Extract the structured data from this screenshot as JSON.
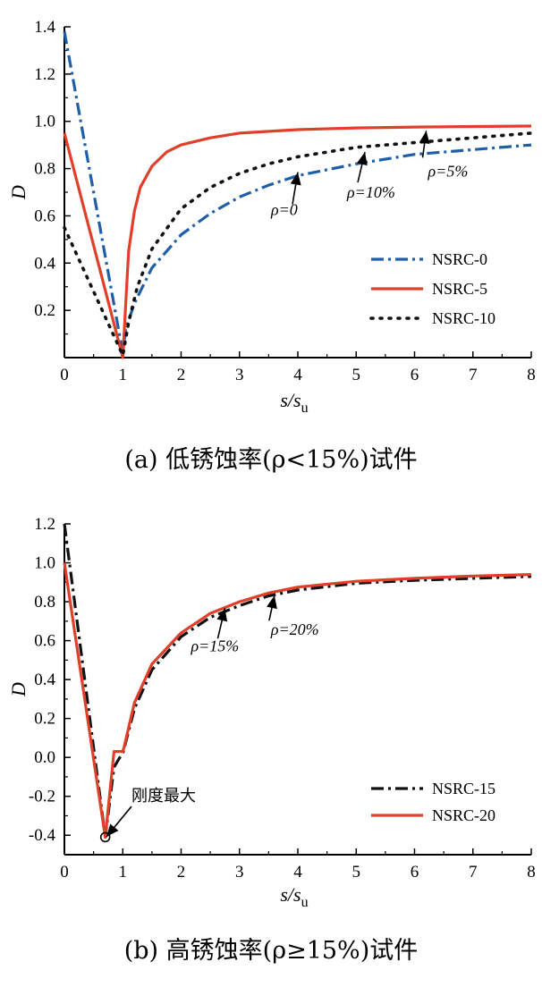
{
  "chart_data": [
    {
      "type": "line",
      "caption": "(a) 低锈蚀率(ρ<15%)试件",
      "xlabel_main": "s/s",
      "xlabel_sub": "u",
      "ylabel": "D",
      "xlim": [
        0,
        8
      ],
      "ylim": [
        0,
        1.4
      ],
      "xticks": [
        "0",
        "1",
        "2",
        "3",
        "4",
        "5",
        "6",
        "7",
        "8"
      ],
      "yticks": [
        "0.2",
        "0.4",
        "0.6",
        "0.8",
        "1.0",
        "1.2",
        "1.4"
      ],
      "legend_position": "lower-right",
      "grid": false,
      "series": [
        {
          "name": "NSRC-0",
          "color": "#1f5fa8",
          "dash": "dashdot",
          "points": [
            [
              0,
              1.38
            ],
            [
              1.0,
              0.02
            ],
            [
              1.05,
              0.12
            ],
            [
              1.2,
              0.23
            ],
            [
              1.5,
              0.38
            ],
            [
              2,
              0.52
            ],
            [
              2.5,
              0.61
            ],
            [
              3,
              0.68
            ],
            [
              3.5,
              0.73
            ],
            [
              4,
              0.77
            ],
            [
              5,
              0.82
            ],
            [
              6,
              0.86
            ],
            [
              7,
              0.88
            ],
            [
              8,
              0.9
            ]
          ]
        },
        {
          "name": "NSRC-5",
          "color": "#e0402a",
          "dash": "solid",
          "points": [
            [
              0,
              0.95
            ],
            [
              1.0,
              0.0
            ],
            [
              1.1,
              0.45
            ],
            [
              1.2,
              0.62
            ],
            [
              1.3,
              0.72
            ],
            [
              1.5,
              0.81
            ],
            [
              1.75,
              0.87
            ],
            [
              2,
              0.9
            ],
            [
              2.5,
              0.93
            ],
            [
              3,
              0.95
            ],
            [
              4,
              0.965
            ],
            [
              5,
              0.972
            ],
            [
              6,
              0.976
            ],
            [
              7,
              0.978
            ],
            [
              8,
              0.98
            ]
          ]
        },
        {
          "name": "NSRC-10",
          "color": "#111111",
          "dash": "dot",
          "points": [
            [
              0,
              0.55
            ],
            [
              1.0,
              0.01
            ],
            [
              1.1,
              0.15
            ],
            [
              1.25,
              0.3
            ],
            [
              1.5,
              0.46
            ],
            [
              2,
              0.63
            ],
            [
              2.5,
              0.72
            ],
            [
              3,
              0.78
            ],
            [
              3.5,
              0.82
            ],
            [
              4,
              0.85
            ],
            [
              5,
              0.89
            ],
            [
              6,
              0.91
            ],
            [
              7,
              0.93
            ],
            [
              8,
              0.95
            ]
          ]
        }
      ],
      "annotations": [
        {
          "text": "ρ=0",
          "x": 4.0,
          "y": 0.8
        },
        {
          "text": "ρ=10%",
          "x": 5.15,
          "y": 0.885
        },
        {
          "text": "ρ=5%",
          "x": 6.2,
          "y": 0.975
        }
      ]
    },
    {
      "type": "line",
      "caption": "(b) 高锈蚀率(ρ≥15%)试件",
      "xlabel_main": "s/s",
      "xlabel_sub": "u",
      "ylabel": "D",
      "xlim": [
        0,
        8
      ],
      "ylim": [
        -0.5,
        1.2
      ],
      "xticks": [
        "0",
        "1",
        "2",
        "3",
        "4",
        "5",
        "6",
        "7",
        "8"
      ],
      "yticks": [
        "-0.4",
        "-0.2",
        "0.0",
        "0.2",
        "0.4",
        "0.6",
        "0.8",
        "1.0",
        "1.2"
      ],
      "legend_position": "lower-right",
      "grid": false,
      "series": [
        {
          "name": "NSRC-15",
          "color": "#111111",
          "dash": "dashdot",
          "points": [
            [
              0,
              1.2
            ],
            [
              0.7,
              -0.41
            ],
            [
              0.85,
              -0.05
            ],
            [
              0.95,
              0.0
            ],
            [
              1.0,
              0.02
            ],
            [
              1.2,
              0.25
            ],
            [
              1.5,
              0.45
            ],
            [
              2,
              0.62
            ],
            [
              2.5,
              0.72
            ],
            [
              3,
              0.78
            ],
            [
              3.5,
              0.83
            ],
            [
              4,
              0.86
            ],
            [
              5,
              0.895
            ],
            [
              6,
              0.91
            ],
            [
              7,
              0.92
            ],
            [
              8,
              0.93
            ]
          ]
        },
        {
          "name": "NSRC-20",
          "color": "#e0402a",
          "dash": "solid",
          "points": [
            [
              0,
              1.0
            ],
            [
              0.7,
              -0.41
            ],
            [
              0.85,
              0.03
            ],
            [
              1.0,
              0.03
            ],
            [
              1.02,
              0.05
            ],
            [
              1.2,
              0.28
            ],
            [
              1.5,
              0.48
            ],
            [
              2,
              0.64
            ],
            [
              2.5,
              0.74
            ],
            [
              3,
              0.8
            ],
            [
              3.5,
              0.845
            ],
            [
              4,
              0.875
            ],
            [
              5,
              0.905
            ],
            [
              6,
              0.92
            ],
            [
              7,
              0.932
            ],
            [
              8,
              0.94
            ]
          ]
        }
      ],
      "annotations": [
        {
          "text": "ρ=15%",
          "x": 2.75,
          "y": 0.785
        },
        {
          "text": "ρ=20%",
          "x": 3.6,
          "y": 0.85
        },
        {
          "text": "刚度最大",
          "x": 0.72,
          "y": -0.39
        }
      ]
    }
  ]
}
